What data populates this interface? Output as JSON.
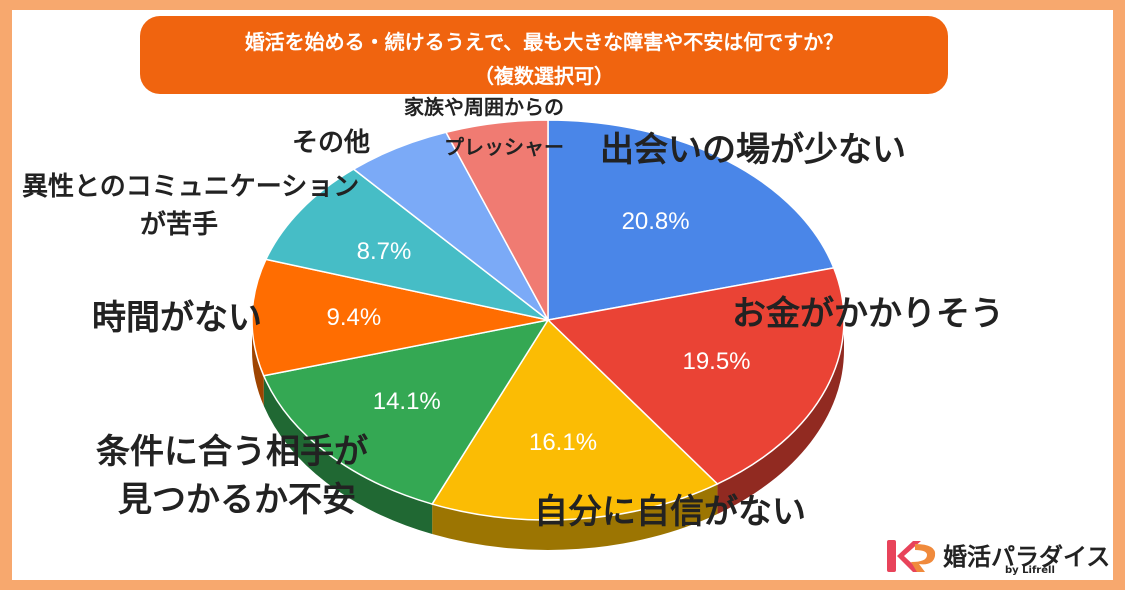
{
  "title": {
    "line1": "婚活を始める・続けるうえで、最も大きな障害や不安は何ですか？",
    "line2": "（複数選択可）"
  },
  "chart_data": {
    "type": "pie",
    "title": "婚活を始める・続けるうえで、最も大きな障害や不安は何ですか？（複数選択可）",
    "slices": [
      {
        "label": "出会いの場が少ない",
        "value": 20.8,
        "display": "20.8%",
        "color": "#4a86e8"
      },
      {
        "label": "お金がかかりそう",
        "value": 19.5,
        "display": "19.5%",
        "color": "#ea4335"
      },
      {
        "label": "自分に自信がない",
        "value": 16.1,
        "display": "16.1%",
        "color": "#fbbc04"
      },
      {
        "label": "条件に合う相手が見つかるか不安",
        "value": 14.1,
        "display": "14.1%",
        "color": "#34a853"
      },
      {
        "label": "時間がない",
        "value": 9.4,
        "display": "9.4%",
        "color": "#ff6d01"
      },
      {
        "label": "異性とのコミュニケーションが苦手",
        "value": 8.7,
        "display": "8.7%",
        "color": "#46bdc6"
      },
      {
        "label": "その他",
        "value": 5.8,
        "display": "",
        "color": "#7baaf7"
      },
      {
        "label": "家族や周囲からのプレッシャー",
        "value": 5.6,
        "display": "",
        "color": "#f07b72"
      }
    ]
  },
  "labels": {
    "l0": "出会いの場が少ない",
    "l1": "お金がかかりそう",
    "l2": "自分に自信がない",
    "l3a": "条件に合う相手が",
    "l3b": "見つかるか不安",
    "l4": "時間がない",
    "l5a": "異性とのコミュニケーション",
    "l5b": "が苦手",
    "l6": "その他",
    "l7a": "家族や周囲からの",
    "l7b": "プレッシャー"
  },
  "logo": {
    "name": "婚活パラダイス",
    "sub": "by Lifrell",
    "colors": {
      "k": "#e8435a",
      "p": "#f08a3c"
    }
  }
}
